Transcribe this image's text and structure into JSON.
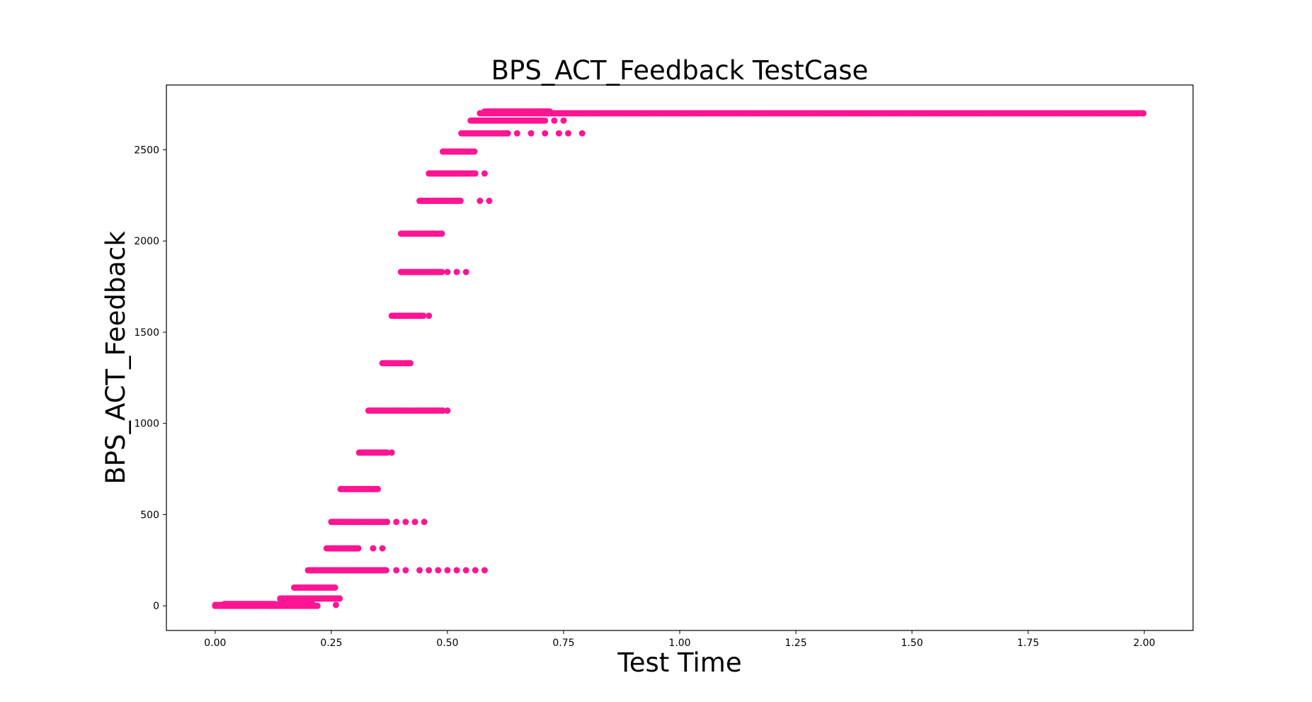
{
  "chart_data": {
    "type": "scatter",
    "title": "BPS_ACT_Feedback TestCase",
    "xlabel": "Test Time",
    "ylabel": "BPS_ACT_Feedback",
    "xlim": [
      -0.105,
      2.105
    ],
    "ylim": [
      -135,
      2855
    ],
    "xticks": [
      "0.00",
      "0.25",
      "0.50",
      "0.75",
      "1.00",
      "1.25",
      "1.50",
      "1.75",
      "2.00"
    ],
    "yticks": [
      "0",
      "500",
      "1000",
      "1500",
      "2000",
      "2500"
    ],
    "grid": false,
    "legend": "none",
    "color": "#ff1493",
    "series": [
      {
        "runs": [
          {
            "y": 0,
            "x_start": 0.0,
            "x_end": 0.22
          },
          {
            "y": 5,
            "x_start": 0.0,
            "x_end": 0.21
          },
          {
            "y": 10,
            "x_start": 0.02,
            "x_end": 0.13
          },
          {
            "y": 20,
            "x_start": 0.14,
            "x_end": 0.21
          },
          {
            "y": 40,
            "x_start": 0.14,
            "x_end": 0.27
          },
          {
            "y": 100,
            "x_start": 0.17,
            "x_end": 0.26
          },
          {
            "y": 195,
            "x_start": 0.2,
            "x_end": 0.37
          },
          {
            "y": 315,
            "x_start": 0.24,
            "x_end": 0.31
          },
          {
            "y": 460,
            "x_start": 0.25,
            "x_end": 0.37
          },
          {
            "y": 640,
            "x_start": 0.27,
            "x_end": 0.35
          },
          {
            "y": 840,
            "x_start": 0.31,
            "x_end": 0.37
          },
          {
            "y": 1070,
            "x_start": 0.33,
            "x_end": 0.49
          },
          {
            "y": 1330,
            "x_start": 0.36,
            "x_end": 0.42
          },
          {
            "y": 1590,
            "x_start": 0.38,
            "x_end": 0.45
          },
          {
            "y": 1830,
            "x_start": 0.4,
            "x_end": 0.49
          },
          {
            "y": 2040,
            "x_start": 0.4,
            "x_end": 0.49
          },
          {
            "y": 2220,
            "x_start": 0.44,
            "x_end": 0.53
          },
          {
            "y": 2370,
            "x_start": 0.46,
            "x_end": 0.56
          },
          {
            "y": 2490,
            "x_start": 0.49,
            "x_end": 0.56
          },
          {
            "y": 2590,
            "x_start": 0.53,
            "x_end": 0.63
          },
          {
            "y": 2660,
            "x_start": 0.55,
            "x_end": 0.71
          },
          {
            "y": 2700,
            "x_start": 0.57,
            "x_end": 2.0
          },
          {
            "y": 2710,
            "x_start": 0.58,
            "x_end": 0.72
          }
        ],
        "sparse_points": [
          {
            "x": 0.26,
            "y": 5
          },
          {
            "x": 0.23,
            "y": 40
          },
          {
            "x": 0.25,
            "y": 40
          },
          {
            "x": 0.39,
            "y": 195
          },
          {
            "x": 0.41,
            "y": 195
          },
          {
            "x": 0.44,
            "y": 195
          },
          {
            "x": 0.46,
            "y": 195
          },
          {
            "x": 0.48,
            "y": 195
          },
          {
            "x": 0.5,
            "y": 195
          },
          {
            "x": 0.52,
            "y": 195
          },
          {
            "x": 0.54,
            "y": 195
          },
          {
            "x": 0.56,
            "y": 195
          },
          {
            "x": 0.58,
            "y": 195
          },
          {
            "x": 0.34,
            "y": 315
          },
          {
            "x": 0.36,
            "y": 315
          },
          {
            "x": 0.39,
            "y": 460
          },
          {
            "x": 0.41,
            "y": 460
          },
          {
            "x": 0.43,
            "y": 460
          },
          {
            "x": 0.45,
            "y": 460
          },
          {
            "x": 0.38,
            "y": 840
          },
          {
            "x": 0.5,
            "y": 1070
          },
          {
            "x": 0.46,
            "y": 1590
          },
          {
            "x": 0.5,
            "y": 1830
          },
          {
            "x": 0.52,
            "y": 1830
          },
          {
            "x": 0.54,
            "y": 1830
          },
          {
            "x": 0.57,
            "y": 2220
          },
          {
            "x": 0.59,
            "y": 2220
          },
          {
            "x": 0.58,
            "y": 2370
          },
          {
            "x": 0.65,
            "y": 2590
          },
          {
            "x": 0.68,
            "y": 2590
          },
          {
            "x": 0.71,
            "y": 2590
          },
          {
            "x": 0.74,
            "y": 2590
          },
          {
            "x": 0.76,
            "y": 2590
          },
          {
            "x": 0.79,
            "y": 2590
          },
          {
            "x": 0.73,
            "y": 2660
          },
          {
            "x": 0.75,
            "y": 2660
          }
        ]
      }
    ]
  }
}
